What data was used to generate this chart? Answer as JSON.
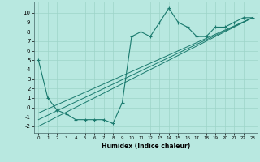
{
  "main_x": [
    0,
    1,
    2,
    3,
    4,
    5,
    6,
    7,
    8,
    9,
    10,
    11,
    12,
    13,
    14,
    15,
    16,
    17,
    18,
    19,
    20,
    21,
    22,
    23
  ],
  "main_y": [
    5.0,
    1.0,
    -0.3,
    -0.7,
    -1.3,
    -1.3,
    -1.3,
    -1.3,
    -1.7,
    0.5,
    7.5,
    8.0,
    7.5,
    9.0,
    10.5,
    9.0,
    8.5,
    7.5,
    7.5,
    8.5,
    8.5,
    9.0,
    9.5,
    9.5
  ],
  "reg_lines": [
    {
      "x0": 0,
      "y0": -2.0,
      "x1": 23,
      "y1": 9.5
    },
    {
      "x0": 0,
      "y0": -1.3,
      "x1": 23,
      "y1": 9.5
    },
    {
      "x0": 0,
      "y0": -0.6,
      "x1": 23,
      "y1": 9.5
    }
  ],
  "color": "#1a7a6e",
  "bg_color": "#b8e8e0",
  "grid_color": "#9dd4c8",
  "xlabel": "Humidex (Indice chaleur)",
  "xlim": [
    -0.5,
    23.5
  ],
  "ylim": [
    -2.7,
    11.2
  ],
  "xticks": [
    0,
    1,
    2,
    3,
    4,
    5,
    6,
    7,
    8,
    9,
    10,
    11,
    12,
    13,
    14,
    15,
    16,
    17,
    18,
    19,
    20,
    21,
    22,
    23
  ],
  "yticks": [
    -2,
    -1,
    0,
    1,
    2,
    3,
    4,
    5,
    6,
    7,
    8,
    9,
    10
  ]
}
